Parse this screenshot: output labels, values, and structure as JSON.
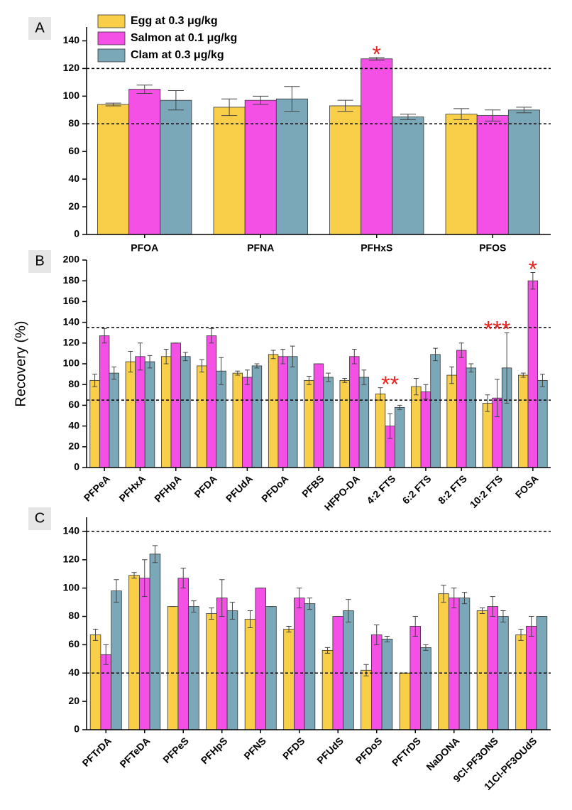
{
  "chart_data": [
    {
      "type": "bar",
      "panel": "A",
      "categories": [
        "PFOA",
        "PFNA",
        "PFHxS",
        "PFOS"
      ],
      "series": [
        {
          "name": "Egg at 0.3 μg/kg",
          "color": "#f9cf4a",
          "values": [
            94,
            92,
            93,
            87
          ],
          "errors": [
            1,
            6,
            4,
            4
          ]
        },
        {
          "name": "Salmon at 0.1 μg/kg",
          "color": "#f450e6",
          "values": [
            105,
            97,
            127,
            86
          ],
          "errors": [
            3,
            3,
            1,
            4
          ]
        },
        {
          "name": "Clam at 0.3 μg/kg",
          "color": "#7ba8b8",
          "values": [
            97,
            98,
            85,
            90
          ],
          "errors": [
            7,
            9,
            2,
            2
          ]
        }
      ],
      "ylim": [
        0,
        150
      ],
      "yticks": [
        0,
        20,
        40,
        60,
        80,
        100,
        120,
        140
      ],
      "hlines": [
        80,
        120
      ],
      "annotations": [
        {
          "text": "*",
          "at": 2
        }
      ]
    },
    {
      "type": "bar",
      "panel": "B",
      "ylabel": "Recovery (%)",
      "categories": [
        "PFPeA",
        "PFHxA",
        "PFHpA",
        "PFDA",
        "PFUdA",
        "PFDoA",
        "PFBS",
        "HFPO-DA",
        "4:2 FTS",
        "6:2 FTS",
        "8:2 FTS",
        "10:2 FTS",
        "FOSA"
      ],
      "series": [
        {
          "color": "#f9cf4a",
          "values": [
            84,
            102,
            107,
            98,
            91,
            109,
            84,
            84,
            71,
            78,
            89,
            62,
            89
          ],
          "errors": [
            6,
            10,
            7,
            6,
            2,
            4,
            4,
            2,
            6,
            8,
            8,
            8,
            2
          ]
        },
        {
          "color": "#f450e6",
          "values": [
            127,
            107,
            120,
            127,
            87,
            107,
            100,
            107,
            40,
            73,
            113,
            67,
            180
          ],
          "errors": [
            7,
            13,
            0,
            7,
            7,
            7,
            0,
            7,
            12,
            7,
            7,
            18,
            8
          ]
        },
        {
          "color": "#7ba8b8",
          "values": [
            91,
            102,
            107,
            93,
            98,
            107,
            87,
            87,
            58,
            109,
            96,
            96,
            84
          ],
          "errors": [
            6,
            6,
            4,
            13,
            2,
            10,
            4,
            7,
            2,
            6,
            4,
            34,
            6
          ]
        }
      ],
      "ylim": [
        0,
        200
      ],
      "yticks": [
        0,
        20,
        40,
        60,
        80,
        100,
        120,
        140,
        160,
        180,
        200
      ],
      "hlines": [
        65,
        135
      ],
      "annotations": [
        {
          "text": "**",
          "at": 8
        },
        {
          "text": "***",
          "at": 11
        },
        {
          "text": "*",
          "at": 12
        }
      ]
    },
    {
      "type": "bar",
      "panel": "C",
      "categories": [
        "PFTrDA",
        "PFTeDA",
        "PFPeS",
        "PFHpS",
        "PFNS",
        "PFDS",
        "PFUdS",
        "PFDoS",
        "PFTrDS",
        "NaDONA",
        "9Cl-PF3ONS",
        "11Cl-PF3OUdS"
      ],
      "series": [
        {
          "color": "#f9cf4a",
          "values": [
            67,
            109,
            87,
            82,
            78,
            71,
            56,
            42,
            40,
            96,
            84,
            67
          ],
          "errors": [
            4,
            2,
            0,
            4,
            6,
            2,
            2,
            4,
            0,
            6,
            2,
            4
          ]
        },
        {
          "color": "#f450e6",
          "values": [
            53,
            107,
            107,
            93,
            100,
            93,
            80,
            67,
            73,
            93,
            87,
            73
          ],
          "errors": [
            7,
            13,
            7,
            13,
            0,
            7,
            0,
            7,
            7,
            7,
            7,
            7
          ]
        },
        {
          "color": "#7ba8b8",
          "values": [
            98,
            124,
            87,
            84,
            87,
            89,
            84,
            64,
            58,
            93,
            80,
            80
          ],
          "errors": [
            8,
            6,
            4,
            6,
            0,
            4,
            8,
            2,
            2,
            4,
            4,
            0
          ]
        }
      ],
      "ylim": [
        0,
        150
      ],
      "yticks": [
        0,
        20,
        40,
        60,
        80,
        100,
        120,
        140
      ],
      "hlines": [
        40,
        140
      ]
    }
  ]
}
